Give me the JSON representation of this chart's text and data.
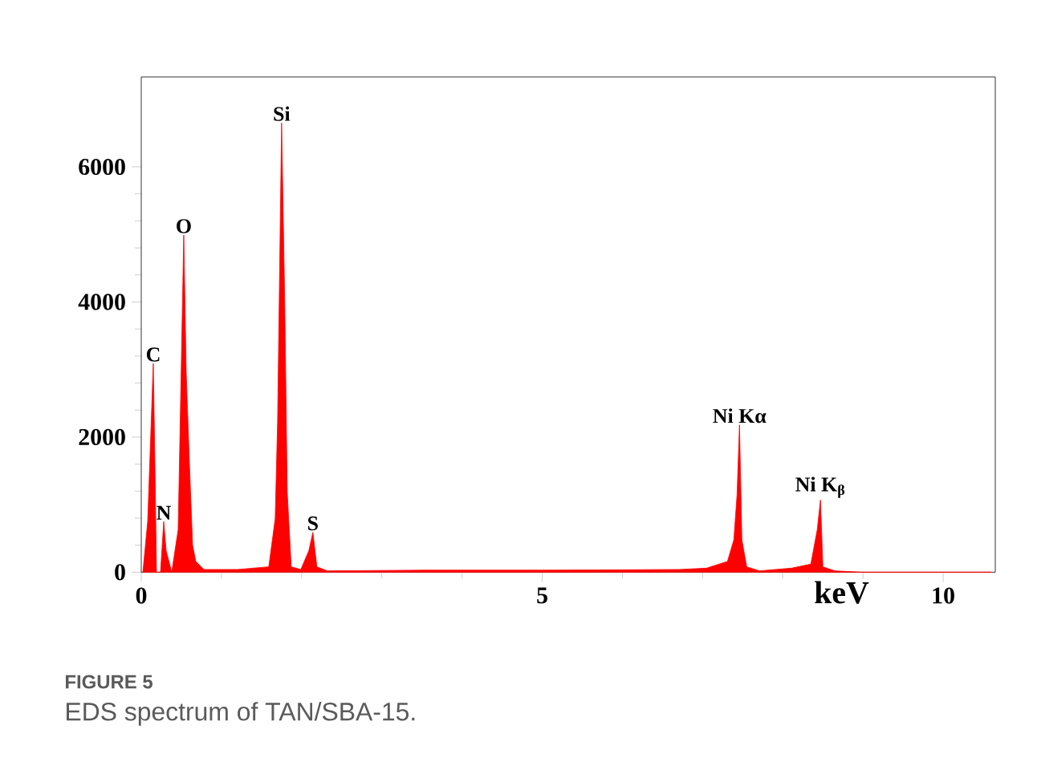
{
  "chart_data": {
    "type": "area",
    "xlabel": "keV",
    "color": "#ff0000",
    "x": [
      0.02,
      0.08,
      0.15,
      0.17,
      0.19,
      0.24,
      0.28,
      0.31,
      0.38,
      0.46,
      0.53,
      0.56,
      0.6,
      0.64,
      0.68,
      0.78,
      1.2,
      1.59,
      1.67,
      1.7,
      1.75,
      1.79,
      1.82,
      1.87,
      1.99,
      2.09,
      2.14,
      2.19,
      2.32,
      3.5,
      5.0,
      6.71,
      7.05,
      7.31,
      7.39,
      7.43,
      7.46,
      7.49,
      7.55,
      7.71,
      8.11,
      8.35,
      8.43,
      8.47,
      8.5,
      8.65,
      8.98,
      10.6
    ],
    "values": [
      0,
      750,
      3090,
      1620,
      0,
      0,
      750,
      320,
      0,
      630,
      4990,
      2970,
      1620,
      400,
      160,
      40,
      40,
      80,
      790,
      2220,
      6650,
      3920,
      1190,
      80,
      40,
      320,
      590,
      80,
      20,
      30,
      30,
      40,
      60,
      160,
      480,
      1150,
      2180,
      480,
      80,
      20,
      60,
      120,
      630,
      1070,
      80,
      20,
      0,
      0
    ],
    "xlim": [
      0,
      10.65
    ],
    "ylim": [
      0,
      7330
    ],
    "xticks": [
      0,
      5,
      10
    ],
    "yticks": [
      0,
      2000,
      4000,
      6000
    ],
    "annotations": [
      {
        "text": "C",
        "x": 0.15,
        "y": 3090
      },
      {
        "text": "N",
        "x": 0.28,
        "y": 750
      },
      {
        "text": "O",
        "x": 0.53,
        "y": 4990
      },
      {
        "text": "Si",
        "x": 1.75,
        "y": 6650
      },
      {
        "text": "S",
        "x": 2.14,
        "y": 590
      },
      {
        "text": "Ni Kα",
        "x": 7.46,
        "y": 2180
      },
      {
        "text": "Ni K$_{β}$",
        "x": 8.47,
        "y": 1070
      },
      "FIGURE 5",
      "EDS spectrum of TAN/SBA-15."
    ]
  }
}
